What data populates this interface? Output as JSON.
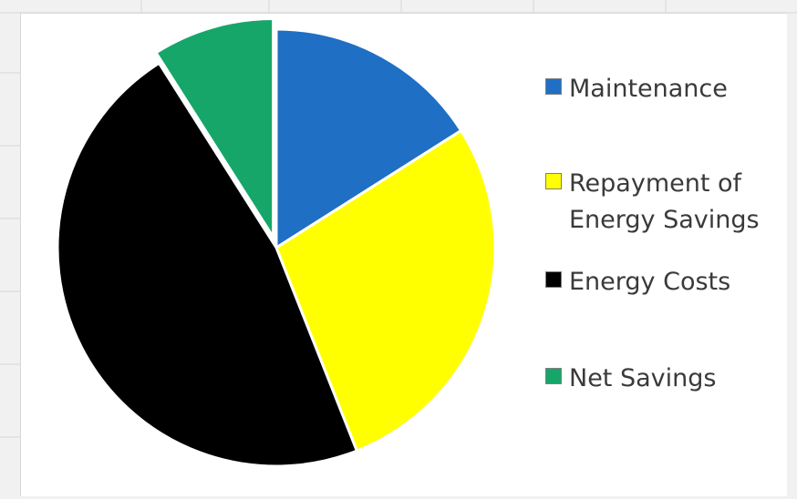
{
  "chart_data": {
    "type": "pie",
    "title": "",
    "categories": [
      "Maintenance",
      "Repayment of Energy Savings",
      "Energy Costs",
      "Net Savings"
    ],
    "values": [
      16,
      28,
      47,
      9
    ],
    "exploded": [
      false,
      false,
      false,
      true
    ],
    "legend_position": "right",
    "colors": [
      "#1f6fc4",
      "#ffff00",
      "#000000",
      "#16a66a"
    ],
    "series": [
      {
        "name": "",
        "values": [
          16,
          28,
          47,
          9
        ]
      }
    ]
  },
  "legend": {
    "items": [
      {
        "label": "Maintenance",
        "color": "#1f6fc4"
      },
      {
        "label": "Repayment of Energy Savings",
        "color": "#ffff00"
      },
      {
        "label": "Energy Costs",
        "color": "#000000"
      },
      {
        "label": "Net Savings",
        "color": "#16a66a"
      }
    ]
  }
}
